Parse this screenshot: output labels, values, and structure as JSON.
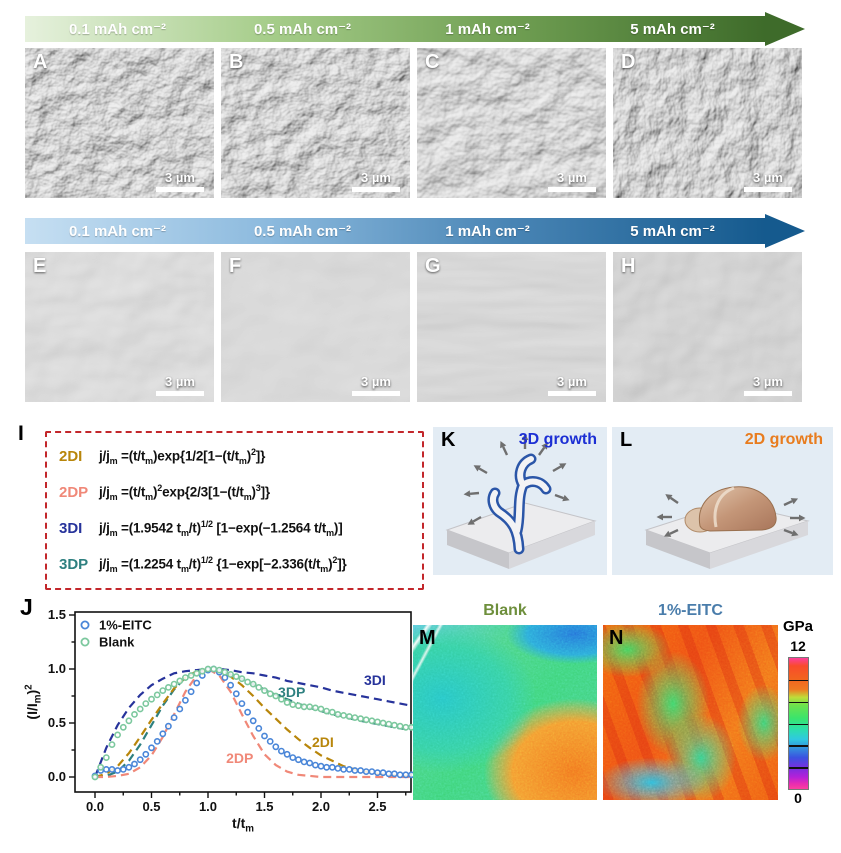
{
  "figure": {
    "top_arrow": {
      "labels": [
        "0.1 mAh cm⁻²",
        "0.5 mAh cm⁻²",
        "1 mAh cm⁻²",
        "5 mAh cm⁻²"
      ],
      "stops": [
        "#e6f1dd",
        "#a6cd8a",
        "#6f9e52",
        "#3e6b2a"
      ]
    },
    "bottom_arrow": {
      "labels": [
        "0.1 mAh cm⁻²",
        "0.5 mAh cm⁻²",
        "1 mAh cm⁻²",
        "5 mAh cm⁻²"
      ],
      "stops": [
        "#c6dff2",
        "#8cbade",
        "#4884b4",
        "#155a8e"
      ]
    },
    "sem_top": {
      "panels": [
        {
          "label": "A",
          "scale": "3 µm"
        },
        {
          "label": "B",
          "scale": "3 µm"
        },
        {
          "label": "C",
          "scale": "3 µm"
        },
        {
          "label": "D",
          "scale": "3 µm"
        }
      ]
    },
    "sem_bottom": {
      "panels": [
        {
          "label": "E",
          "scale": "3 µm"
        },
        {
          "label": "F",
          "scale": "3 µm"
        },
        {
          "label": "G",
          "scale": "3 µm"
        },
        {
          "label": "H",
          "scale": "3 µm"
        }
      ]
    },
    "models": {
      "label": "I",
      "border_color": "#c3272b",
      "items": [
        {
          "name": "2DI",
          "color": "#b8860b",
          "formula": "j/j_{m} =(t/t_{m})exp{1/2[1−(t/t_{m})^{2}]}"
        },
        {
          "name": "2DP",
          "color": "#f08878",
          "formula": "j/j_{m} =(t/t_{m})^{2}exp{2/3[1−(t/t_{m})^{3}]}"
        },
        {
          "name": "3DI",
          "color": "#27339b",
          "formula": "j/j_{m} =(1.9542 t_{m}/t)^{1/2} [1−exp(−1.2564 t/t_{m})]"
        },
        {
          "name": "3DP",
          "color": "#2e8080",
          "formula": "j/j_{m} =(1.2254 t_{m}/t)^{1/2} {1−exp[−2.336(t/t_{m})^{2}]}"
        }
      ]
    },
    "growth": [
      {
        "label": "K",
        "title": "3D growth",
        "color": "#1c2fd4"
      },
      {
        "label": "L",
        "title": "2D growth",
        "color": "#e87c1e"
      }
    ],
    "kinetics_panel_label": "J",
    "maps": {
      "left": {
        "label": "M",
        "title": "Blank",
        "title_color": "#6e8f3c"
      },
      "right": {
        "label": "N",
        "title": "1%-EITC",
        "title_color": "#4a7dab"
      },
      "colorbar": {
        "unit": "GPa",
        "max": "12",
        "min": "0"
      }
    }
  },
  "chart_data": {
    "type": "line+scatter",
    "title": "",
    "xlabel": "t/t_{m}",
    "ylabel": "(I/I_{m})^{2}",
    "xlim": [
      -0.18,
      2.8
    ],
    "ylim": [
      -0.14,
      1.53
    ],
    "xticks": [
      0,
      0.5,
      1,
      1.5,
      2,
      2.5
    ],
    "yticks": [
      0,
      0.5,
      1,
      1.5
    ],
    "grid": false,
    "legend_position": "upper-left",
    "x_model": [
      0,
      0.1,
      0.2,
      0.3,
      0.4,
      0.5,
      0.6,
      0.7,
      0.8,
      0.9,
      1.0,
      1.1,
      1.2,
      1.3,
      1.4,
      1.5,
      1.6,
      1.7,
      1.8,
      1.9,
      2.0,
      2.1,
      2.2,
      2.3,
      2.4,
      2.5,
      2.6,
      2.7,
      2.8
    ],
    "model_curves": [
      {
        "name": "3DI",
        "color": "#27339b",
        "style": "dashed",
        "label_x": 2.38,
        "label_y": 0.85,
        "y": [
          0,
          0.27,
          0.48,
          0.64,
          0.76,
          0.85,
          0.91,
          0.96,
          0.98,
          0.99,
          1.0,
          1.0,
          0.99,
          0.97,
          0.96,
          0.94,
          0.92,
          0.89,
          0.87,
          0.85,
          0.83,
          0.8,
          0.78,
          0.76,
          0.74,
          0.72,
          0.7,
          0.68,
          0.66
        ]
      },
      {
        "name": "3DP",
        "color": "#2e8080",
        "style": "dashed",
        "label_x": 1.62,
        "label_y": 0.74,
        "y": [
          0,
          0.01,
          0.05,
          0.15,
          0.3,
          0.48,
          0.66,
          0.81,
          0.92,
          0.98,
          1.0,
          0.99,
          0.95,
          0.91,
          0.86,
          0.81,
          0.76,
          0.72,
          0.68,
          0.64,
          0.61,
          0.58,
          0.56,
          0.53,
          0.51,
          0.49,
          0.47,
          0.45,
          0.44
        ]
      },
      {
        "name": "2DI",
        "color": "#b8860b",
        "style": "dashed",
        "label_x": 1.92,
        "label_y": 0.28,
        "y": [
          0,
          0.03,
          0.1,
          0.22,
          0.37,
          0.53,
          0.68,
          0.82,
          0.92,
          0.98,
          1.0,
          0.98,
          0.93,
          0.85,
          0.75,
          0.64,
          0.54,
          0.44,
          0.35,
          0.27,
          0.2,
          0.15,
          0.1,
          0.07,
          0.05,
          0.03,
          0.02,
          0.01,
          0.01
        ]
      },
      {
        "name": "2DP",
        "color": "#f08878",
        "style": "dashed",
        "label_x": 1.16,
        "label_y": 0.13,
        "y": [
          0,
          0.0,
          0.01,
          0.03,
          0.09,
          0.2,
          0.37,
          0.58,
          0.79,
          0.94,
          1.0,
          0.94,
          0.79,
          0.58,
          0.38,
          0.21,
          0.11,
          0.05,
          0.02,
          0.01,
          0.0,
          0.0,
          0.0,
          0.0,
          0.0,
          0.0,
          0.0,
          0.0,
          0.0
        ]
      }
    ],
    "x_scatter": [
      0,
      0.05,
      0.1,
      0.15,
      0.2,
      0.25,
      0.3,
      0.35,
      0.4,
      0.45,
      0.5,
      0.55,
      0.6,
      0.65,
      0.7,
      0.75,
      0.8,
      0.85,
      0.9,
      0.95,
      1.0,
      1.05,
      1.1,
      1.15,
      1.2,
      1.25,
      1.3,
      1.35,
      1.4,
      1.45,
      1.5,
      1.55,
      1.6,
      1.65,
      1.7,
      1.75,
      1.8,
      1.85,
      1.9,
      1.95,
      2.0,
      2.05,
      2.1,
      2.15,
      2.2,
      2.25,
      2.3,
      2.35,
      2.4,
      2.45,
      2.5,
      2.55,
      2.6,
      2.65,
      2.7,
      2.75,
      2.8
    ],
    "scatter_series": [
      {
        "name": "1%-EITC",
        "color": "#4a86d8",
        "marker": "open-circle",
        "y": [
          0.01,
          0.06,
          0.07,
          0.07,
          0.06,
          0.07,
          0.09,
          0.12,
          0.16,
          0.21,
          0.27,
          0.33,
          0.4,
          0.47,
          0.55,
          0.63,
          0.71,
          0.79,
          0.87,
          0.94,
          0.99,
          1.0,
          0.97,
          0.92,
          0.85,
          0.77,
          0.68,
          0.6,
          0.52,
          0.45,
          0.38,
          0.33,
          0.28,
          0.24,
          0.21,
          0.18,
          0.16,
          0.14,
          0.13,
          0.11,
          0.1,
          0.09,
          0.09,
          0.08,
          0.07,
          0.07,
          0.06,
          0.06,
          0.05,
          0.05,
          0.04,
          0.04,
          0.03,
          0.03,
          0.02,
          0.02,
          0.02
        ]
      },
      {
        "name": "Blank",
        "color": "#7cc89e",
        "marker": "open-circle",
        "y": [
          0.0,
          0.09,
          0.18,
          0.3,
          0.39,
          0.46,
          0.52,
          0.58,
          0.63,
          0.68,
          0.72,
          0.76,
          0.8,
          0.83,
          0.86,
          0.89,
          0.92,
          0.94,
          0.96,
          0.98,
          1.0,
          1.0,
          0.99,
          0.97,
          0.95,
          0.93,
          0.91,
          0.88,
          0.86,
          0.83,
          0.8,
          0.77,
          0.75,
          0.72,
          0.69,
          0.67,
          0.66,
          0.65,
          0.65,
          0.64,
          0.63,
          0.61,
          0.6,
          0.58,
          0.57,
          0.56,
          0.55,
          0.54,
          0.53,
          0.52,
          0.51,
          0.5,
          0.49,
          0.48,
          0.47,
          0.46,
          0.46
        ]
      }
    ]
  }
}
